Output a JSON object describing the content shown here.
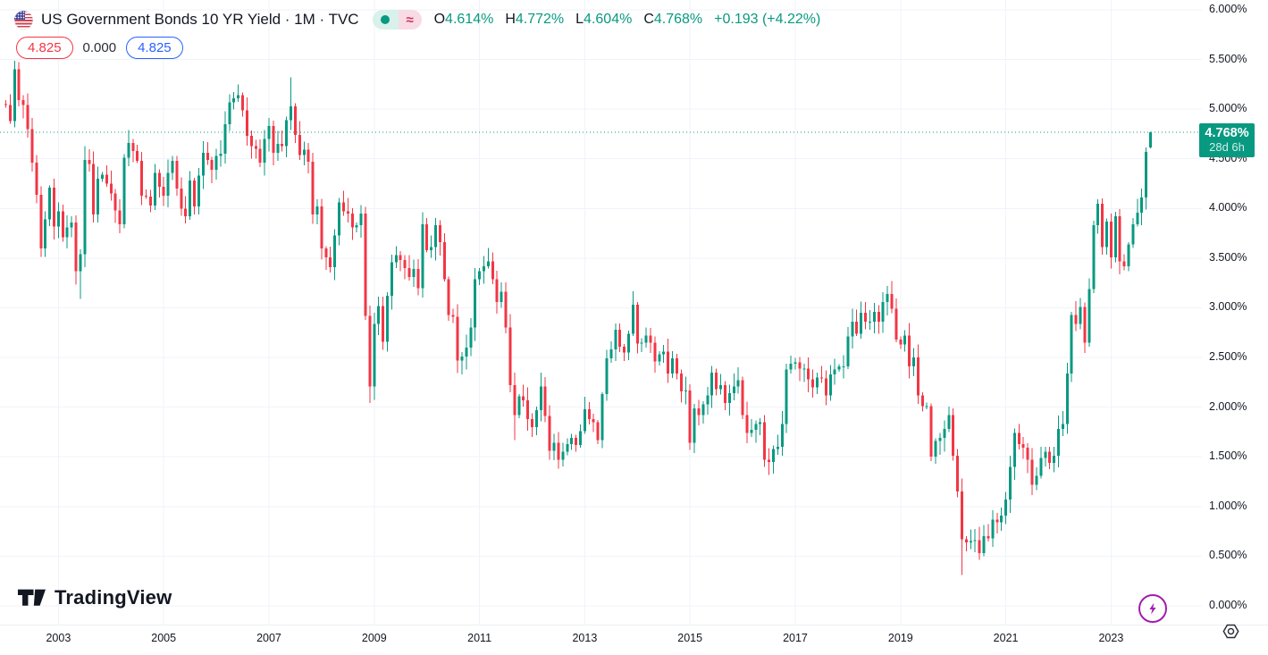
{
  "header": {
    "title": "US Government Bonds 10 YR Yield · 1M · TVC",
    "status_pill": {
      "dot": "●",
      "approx": "≈"
    },
    "legend": {
      "o_key": "O",
      "o": "4.614%",
      "h_key": "H",
      "h": "4.772%",
      "l_key": "L",
      "l": "4.604%",
      "c_key": "C",
      "c": "4.768%",
      "change": "+0.193 (+4.22%)"
    },
    "price_tags": {
      "alert_red": "4.825",
      "zero": "0.000",
      "alert_blue": "4.825"
    }
  },
  "price_scale": {
    "current": {
      "price": "4.768%",
      "countdown": "28d 6h"
    }
  },
  "footer": {
    "logo_text": "TradingView"
  },
  "chart_data": {
    "type": "candlestick",
    "title": "US Government Bonds 10 YR Yield",
    "interval": "1M",
    "exchange": "TVC",
    "start_month": "2002-01",
    "unit": "percent",
    "ylim": [
      0.0,
      6.27
    ],
    "grid": true,
    "y_axis": {
      "tick_values": [
        6.0,
        5.5,
        5.0,
        4.5,
        4.0,
        3.5,
        3.0,
        2.5,
        2.0,
        1.5,
        1.0,
        0.5,
        0.0
      ],
      "tick_labels": [
        "6.000%",
        "5.500%",
        "5.000%",
        "4.500%",
        "4.000%",
        "3.500%",
        "3.000%",
        "2.500%",
        "2.000%",
        "1.500%",
        "1.000%",
        "0.500%",
        "0.000%"
      ]
    },
    "x_axis": {
      "year_labels": [
        "2003",
        "2005",
        "2007",
        "2009",
        "2011",
        "2013",
        "2015",
        "2017",
        "2019",
        "2021",
        "2023"
      ]
    },
    "first_open": 5.05,
    "closes": [
      5.04,
      4.88,
      5.4,
      5.09,
      5.04,
      4.8,
      4.46,
      4.14,
      3.6,
      3.89,
      4.21,
      3.82,
      3.97,
      3.71,
      3.81,
      3.86,
      3.37,
      3.54,
      4.49,
      4.45,
      3.94,
      4.3,
      4.34,
      4.25,
      4.15,
      3.98,
      3.84,
      4.51,
      4.66,
      4.58,
      4.48,
      4.13,
      4.12,
      4.03,
      4.36,
      4.22,
      4.13,
      4.36,
      4.48,
      4.2,
      4.0,
      3.92,
      4.28,
      4.02,
      4.33,
      4.56,
      4.49,
      4.39,
      4.53,
      4.55,
      4.85,
      5.07,
      5.11,
      5.14,
      4.99,
      4.73,
      4.63,
      4.6,
      4.46,
      4.7,
      4.83,
      4.56,
      4.65,
      4.63,
      4.89,
      5.03,
      4.74,
      4.54,
      4.59,
      4.47,
      3.94,
      4.02,
      3.6,
      3.51,
      3.41,
      3.73,
      4.06,
      3.97,
      3.95,
      3.81,
      3.83,
      3.95,
      2.92,
      2.21,
      2.84,
      3.02,
      2.66,
      3.12,
      3.46,
      3.53,
      3.48,
      3.4,
      3.31,
      3.39,
      3.2,
      3.84,
      3.58,
      3.61,
      3.83,
      3.66,
      3.29,
      2.93,
      2.91,
      2.47,
      2.51,
      2.6,
      2.8,
      3.29,
      3.37,
      3.42,
      3.47,
      3.29,
      3.06,
      3.16,
      2.8,
      2.22,
      1.92,
      2.11,
      2.07,
      1.88,
      1.8,
      1.97,
      2.21,
      1.91,
      1.56,
      1.64,
      1.47,
      1.55,
      1.63,
      1.69,
      1.62,
      1.76,
      1.98,
      1.88,
      1.85,
      1.67,
      2.13,
      2.49,
      2.58,
      2.78,
      2.61,
      2.55,
      2.74,
      3.03,
      2.64,
      2.65,
      2.72,
      2.65,
      2.46,
      2.53,
      2.56,
      2.34,
      2.49,
      2.34,
      2.16,
      2.17,
      1.64,
      1.99,
      1.92,
      2.03,
      2.12,
      2.35,
      2.18,
      2.22,
      2.04,
      2.14,
      2.21,
      2.27,
      1.92,
      1.74,
      1.77,
      1.83,
      1.85,
      1.47,
      1.45,
      1.58,
      1.6,
      1.83,
      2.38,
      2.44,
      2.45,
      2.39,
      2.39,
      2.28,
      2.2,
      2.3,
      2.29,
      2.12,
      2.33,
      2.38,
      2.41,
      2.41,
      2.71,
      2.86,
      2.74,
      2.95,
      2.86,
      2.86,
      2.96,
      2.86,
      3.06,
      3.14,
      2.99,
      2.68,
      2.63,
      2.72,
      2.41,
      2.5,
      2.12,
      2.01,
      2.01,
      1.5,
      1.66,
      1.69,
      1.78,
      1.92,
      1.51,
      1.15,
      0.67,
      0.64,
      0.65,
      0.66,
      0.53,
      0.7,
      0.68,
      0.87,
      0.84,
      0.91,
      1.07,
      1.4,
      1.74,
      1.63,
      1.59,
      1.47,
      1.22,
      1.31,
      1.49,
      1.55,
      1.44,
      1.51,
      1.78,
      1.83,
      2.34,
      2.93,
      2.84,
      3.01,
      2.65,
      3.19,
      3.83,
      4.05,
      3.61,
      3.87,
      3.51,
      3.92,
      3.47,
      3.42,
      3.64,
      3.84,
      3.96,
      4.11,
      4.57,
      4.768
    ],
    "overrides": {
      "2003-06": {
        "l": 3.09
      },
      "2006-06": {
        "h": 5.25
      },
      "2007-06": {
        "h": 5.32
      },
      "2008-12": {
        "l": 2.04
      },
      "2011-09": {
        "l": 1.67
      },
      "2012-07": {
        "l": 1.38
      },
      "2016-07": {
        "l": 1.32
      },
      "2019-09": {
        "l": 1.43
      },
      "2020-03": {
        "l": 0.31
      },
      "2020-08": {
        "l": 0.5
      },
      "2023-10": {
        "o": 4.614,
        "h": 4.772,
        "l": 4.604,
        "c": 4.768
      }
    },
    "current_price": 4.768,
    "colors": {
      "up": "#089981",
      "down": "#f23645",
      "grid": "#f0f3fa",
      "dotted_line": "#089981"
    }
  }
}
